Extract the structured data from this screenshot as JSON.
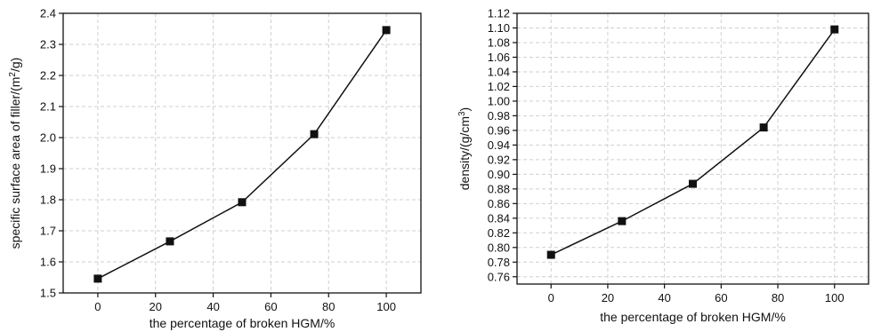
{
  "chart_data": [
    {
      "type": "line",
      "title": "",
      "xlabel": "the percentage of broken HGM/%",
      "ylabel_parts": [
        "specific surface area of filler/(m",
        "2",
        "/g)"
      ],
      "xlim": [
        -12,
        112
      ],
      "ylim": [
        1.5,
        2.4
      ],
      "xticks": [
        0,
        20,
        40,
        60,
        80,
        100
      ],
      "yticks": [
        1.5,
        1.6,
        1.7,
        1.8,
        1.9,
        2.0,
        2.1,
        2.2,
        2.3,
        2.4
      ],
      "ydecimals": 1,
      "grid": true,
      "x": [
        0,
        25,
        50,
        75,
        100
      ],
      "series": [
        {
          "values": [
            1.546,
            1.666,
            1.792,
            2.011,
            2.346
          ]
        }
      ]
    },
    {
      "type": "line",
      "title": "",
      "xlabel": "the percentage of broken HGM/%",
      "ylabel_parts": [
        "density/(g/cm",
        "3",
        ")"
      ],
      "xlim": [
        -12,
        112
      ],
      "ylim": [
        0.75,
        1.12
      ],
      "xticks": [
        0,
        20,
        40,
        60,
        80,
        100
      ],
      "yticks": [
        0.76,
        0.78,
        0.8,
        0.82,
        0.84,
        0.86,
        0.88,
        0.9,
        0.92,
        0.94,
        0.96,
        0.98,
        1.0,
        1.02,
        1.04,
        1.06,
        1.08,
        1.1,
        1.12
      ],
      "ydecimals": 2,
      "grid": true,
      "x": [
        0,
        25,
        50,
        75,
        100
      ],
      "series": [
        {
          "values": [
            0.79,
            0.836,
            0.887,
            0.964,
            1.098
          ]
        }
      ]
    }
  ]
}
